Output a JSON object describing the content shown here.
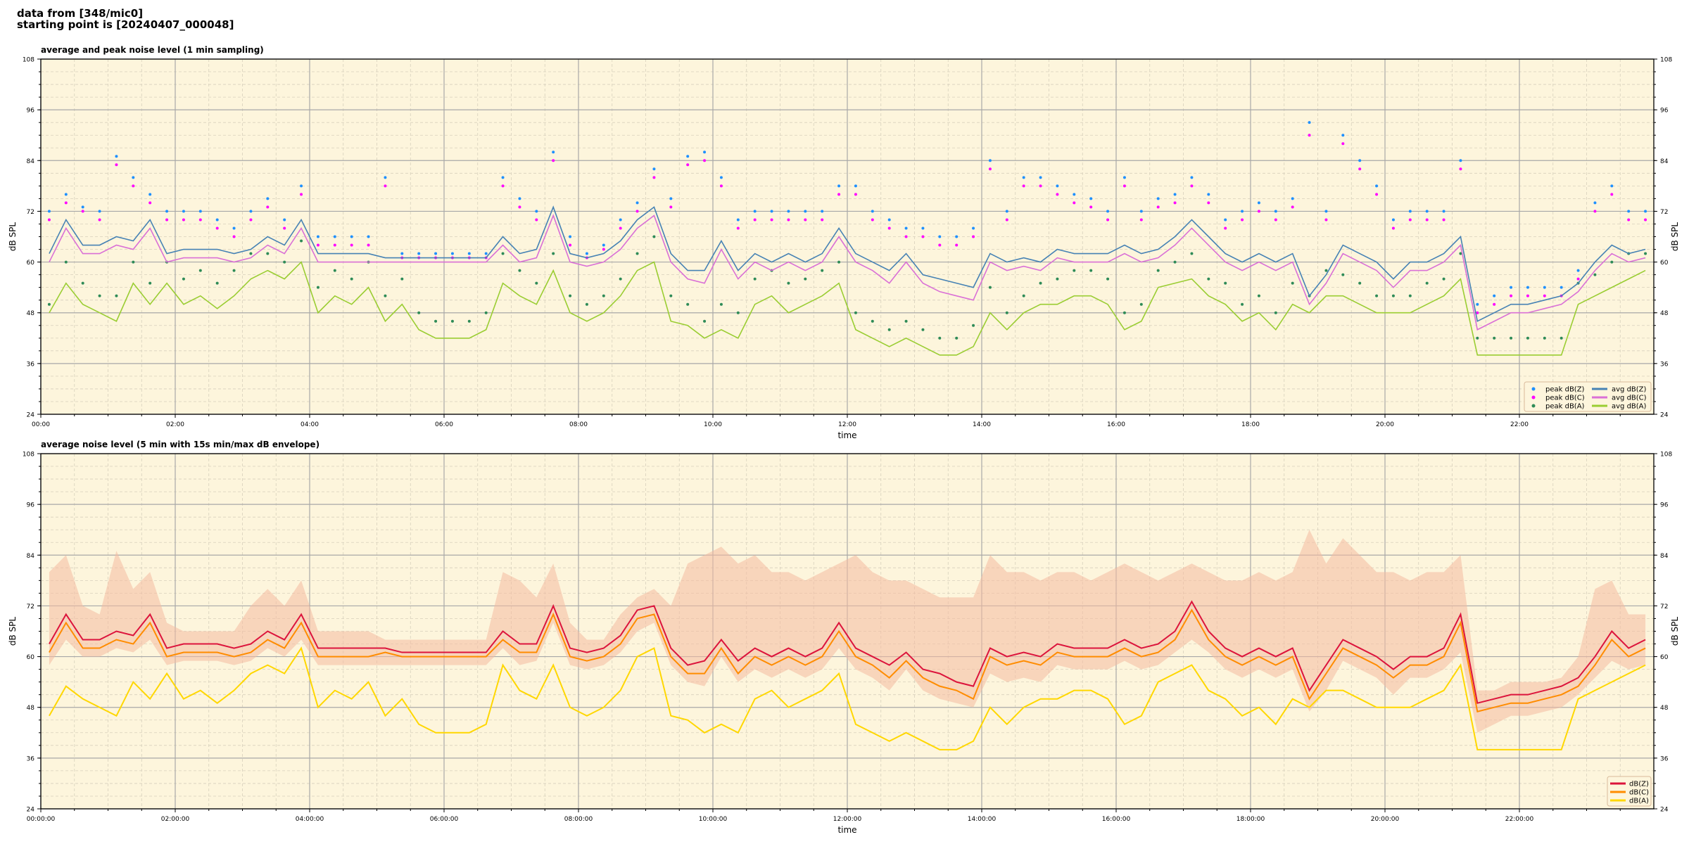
{
  "header": {
    "line1": "data from [348/mic0]",
    "line2": "starting point is [20240407_000048]"
  },
  "chart_data": [
    {
      "type": "line",
      "title": "average and peak noise level (1 min sampling)",
      "xlabel": "time",
      "ylabel": "dB SPL",
      "ylim": [
        24,
        108
      ],
      "yticks": [
        "24",
        "36",
        "48",
        "60",
        "72",
        "84",
        "96",
        "108"
      ],
      "xlim_hours": [
        0,
        24
      ],
      "xticks": [
        "00:00",
        "02:00",
        "04:00",
        "06:00",
        "08:00",
        "10:00",
        "12:00",
        "14:00",
        "16:00",
        "18:00",
        "20:00",
        "22:00"
      ],
      "grid": true,
      "legend_position": "bottom-right",
      "x_step_minutes": 15,
      "series": [
        {
          "name": "peak dB(Z)",
          "kind": "scatter",
          "color": "#1e90ff",
          "values": [
            72,
            76,
            73,
            72,
            85,
            80,
            76,
            72,
            72,
            72,
            70,
            68,
            72,
            75,
            70,
            78,
            66,
            66,
            66,
            66,
            80,
            62,
            62,
            62,
            62,
            62,
            62,
            80,
            75,
            72,
            86,
            66,
            62,
            64,
            70,
            74,
            82,
            75,
            85,
            86,
            80,
            70,
            72,
            72,
            72,
            72,
            72,
            78,
            78,
            72,
            70,
            68,
            68,
            66,
            66,
            68,
            84,
            72,
            80,
            80,
            78,
            76,
            75,
            72,
            80,
            72,
            75,
            76,
            80,
            76,
            70,
            72,
            74,
            72,
            75,
            93,
            72,
            90,
            84,
            78,
            70,
            72,
            72,
            72,
            84,
            50,
            52,
            54,
            54,
            54,
            54,
            58,
            74,
            78,
            72,
            72
          ]
        },
        {
          "name": "peak dB(C)",
          "kind": "scatter",
          "color": "#ff00ff",
          "values": [
            70,
            74,
            72,
            70,
            83,
            78,
            74,
            70,
            70,
            70,
            68,
            66,
            70,
            73,
            68,
            76,
            64,
            64,
            64,
            64,
            78,
            61,
            61,
            61,
            61,
            61,
            61,
            78,
            73,
            70,
            84,
            64,
            61,
            63,
            68,
            72,
            80,
            73,
            83,
            84,
            78,
            68,
            70,
            70,
            70,
            70,
            70,
            76,
            76,
            70,
            68,
            66,
            66,
            64,
            64,
            66,
            82,
            70,
            78,
            78,
            76,
            74,
            73,
            70,
            78,
            70,
            73,
            74,
            78,
            74,
            68,
            70,
            72,
            70,
            73,
            90,
            70,
            88,
            82,
            76,
            68,
            70,
            70,
            70,
            82,
            48,
            50,
            52,
            52,
            52,
            52,
            56,
            72,
            76,
            70,
            70
          ]
        },
        {
          "name": "peak dB(A)",
          "kind": "scatter",
          "color": "#2e8b57",
          "values": [
            50,
            60,
            55,
            52,
            52,
            60,
            55,
            60,
            56,
            58,
            55,
            58,
            62,
            62,
            60,
            65,
            54,
            58,
            56,
            60,
            52,
            56,
            48,
            46,
            46,
            46,
            48,
            62,
            58,
            55,
            62,
            52,
            50,
            52,
            56,
            62,
            66,
            52,
            50,
            46,
            50,
            48,
            56,
            58,
            55,
            56,
            58,
            60,
            48,
            46,
            44,
            46,
            44,
            42,
            42,
            45,
            54,
            48,
            52,
            55,
            56,
            58,
            58,
            56,
            48,
            50,
            58,
            60,
            62,
            56,
            55,
            50,
            52,
            48,
            55,
            52,
            58,
            57,
            55,
            52,
            52,
            52,
            55,
            56,
            62,
            42,
            42,
            42,
            42,
            42,
            42,
            55,
            57,
            60,
            62,
            62
          ]
        },
        {
          "name": "avg dB(Z)",
          "kind": "line",
          "color": "#4682b4",
          "values": [
            62,
            70,
            64,
            64,
            66,
            65,
            70,
            62,
            63,
            63,
            63,
            62,
            63,
            66,
            64,
            70,
            62,
            62,
            62,
            62,
            61,
            61,
            61,
            61,
            61,
            61,
            61,
            66,
            62,
            63,
            73,
            62,
            61,
            62,
            65,
            70,
            73,
            62,
            58,
            58,
            65,
            58,
            62,
            60,
            62,
            60,
            62,
            68,
            62,
            60,
            58,
            62,
            57,
            56,
            55,
            54,
            62,
            60,
            61,
            60,
            63,
            62,
            62,
            62,
            64,
            62,
            63,
            66,
            70,
            66,
            62,
            60,
            62,
            60,
            62,
            52,
            57,
            64,
            62,
            60,
            56,
            60,
            60,
            62,
            66,
            46,
            48,
            50,
            50,
            51,
            52,
            55,
            60,
            64,
            62,
            63
          ]
        },
        {
          "name": "avg dB(C)",
          "kind": "line",
          "color": "#da70d6",
          "values": [
            60,
            68,
            62,
            62,
            64,
            63,
            68,
            60,
            61,
            61,
            61,
            60,
            61,
            64,
            62,
            68,
            60,
            60,
            60,
            60,
            60,
            60,
            60,
            60,
            60,
            60,
            60,
            64,
            60,
            61,
            71,
            60,
            59,
            60,
            63,
            68,
            71,
            60,
            56,
            55,
            63,
            56,
            60,
            58,
            60,
            58,
            60,
            66,
            60,
            58,
            55,
            60,
            55,
            53,
            52,
            51,
            60,
            58,
            59,
            58,
            61,
            60,
            60,
            60,
            62,
            60,
            61,
            64,
            68,
            64,
            60,
            58,
            60,
            58,
            60,
            50,
            55,
            62,
            60,
            58,
            54,
            58,
            58,
            60,
            64,
            44,
            46,
            48,
            48,
            49,
            50,
            53,
            58,
            62,
            60,
            61
          ]
        },
        {
          "name": "avg dB(A)",
          "kind": "line",
          "color": "#9acd32",
          "values": [
            48,
            55,
            50,
            48,
            46,
            55,
            50,
            55,
            50,
            52,
            49,
            52,
            56,
            58,
            56,
            60,
            48,
            52,
            50,
            54,
            46,
            50,
            44,
            42,
            42,
            42,
            44,
            55,
            52,
            50,
            58,
            48,
            46,
            48,
            52,
            58,
            60,
            46,
            45,
            42,
            44,
            42,
            50,
            52,
            48,
            50,
            52,
            55,
            44,
            42,
            40,
            42,
            40,
            38,
            38,
            40,
            48,
            44,
            48,
            50,
            50,
            52,
            52,
            50,
            44,
            46,
            54,
            55,
            56,
            52,
            50,
            46,
            48,
            44,
            50,
            48,
            52,
            52,
            50,
            48,
            48,
            48,
            50,
            52,
            56,
            38,
            38,
            38,
            38,
            38,
            38,
            50,
            52,
            54,
            56,
            58
          ]
        }
      ]
    },
    {
      "type": "line",
      "title": "average noise level (5 min with 15s min/max dB envelope)",
      "xlabel": "time",
      "ylabel": "dB SPL",
      "ylim": [
        24,
        108
      ],
      "yticks": [
        "24",
        "36",
        "48",
        "60",
        "72",
        "84",
        "96",
        "108"
      ],
      "xlim_hours": [
        0,
        24
      ],
      "xticks": [
        "00:00:00",
        "02:00:00",
        "04:00:00",
        "06:00:00",
        "08:00:00",
        "10:00:00",
        "12:00:00",
        "14:00:00",
        "16:00:00",
        "18:00:00",
        "20:00:00",
        "22:00:00"
      ],
      "grid": true,
      "legend_position": "bottom-right",
      "x_step_minutes": 15,
      "envelope": {
        "color": "#f4b9a0",
        "max": [
          80,
          84,
          72,
          70,
          85,
          76,
          80,
          68,
          66,
          66,
          66,
          66,
          72,
          76,
          72,
          78,
          66,
          66,
          66,
          66,
          64,
          64,
          64,
          64,
          64,
          64,
          64,
          80,
          78,
          74,
          82,
          68,
          64,
          64,
          70,
          74,
          76,
          72,
          82,
          84,
          86,
          82,
          84,
          80,
          80,
          78,
          80,
          82,
          84,
          80,
          78,
          78,
          76,
          74,
          74,
          74,
          84,
          80,
          80,
          78,
          80,
          80,
          78,
          80,
          82,
          80,
          78,
          80,
          82,
          80,
          78,
          78,
          80,
          78,
          80,
          90,
          82,
          88,
          84,
          80,
          80,
          78,
          80,
          80,
          84,
          52,
          52,
          54,
          54,
          54,
          55,
          60,
          76,
          78,
          70,
          70
        ],
        "min": [
          58,
          64,
          60,
          60,
          62,
          61,
          64,
          58,
          59,
          59,
          59,
          58,
          59,
          62,
          60,
          64,
          58,
          58,
          58,
          58,
          58,
          58,
          58,
          58,
          58,
          58,
          58,
          62,
          58,
          59,
          68,
          58,
          57,
          58,
          61,
          66,
          68,
          58,
          54,
          53,
          60,
          54,
          57,
          55,
          57,
          55,
          57,
          62,
          57,
          55,
          52,
          57,
          52,
          50,
          49,
          48,
          56,
          54,
          55,
          54,
          58,
          57,
          57,
          57,
          59,
          57,
          58,
          61,
          64,
          61,
          57,
          55,
          57,
          55,
          57,
          47,
          52,
          59,
          57,
          55,
          51,
          55,
          55,
          57,
          61,
          42,
          44,
          46,
          46,
          47,
          48,
          51,
          55,
          59,
          57,
          58
        ]
      },
      "series": [
        {
          "name": "dB(Z)",
          "kind": "line",
          "color": "#dc143c",
          "values": [
            63,
            70,
            64,
            64,
            66,
            65,
            70,
            62,
            63,
            63,
            63,
            62,
            63,
            66,
            64,
            70,
            62,
            62,
            62,
            62,
            62,
            61,
            61,
            61,
            61,
            61,
            61,
            66,
            63,
            63,
            72,
            62,
            61,
            62,
            65,
            71,
            72,
            62,
            58,
            59,
            64,
            59,
            62,
            60,
            62,
            60,
            62,
            68,
            62,
            60,
            58,
            61,
            57,
            56,
            54,
            53,
            62,
            60,
            61,
            60,
            63,
            62,
            62,
            62,
            64,
            62,
            63,
            66,
            73,
            66,
            62,
            60,
            62,
            60,
            62,
            52,
            58,
            64,
            62,
            60,
            57,
            60,
            60,
            62,
            70,
            49,
            50,
            51,
            51,
            52,
            53,
            55,
            60,
            66,
            62,
            64
          ]
        },
        {
          "name": "dB(C)",
          "kind": "line",
          "color": "#ff8c00",
          "values": [
            61,
            68,
            62,
            62,
            64,
            63,
            68,
            60,
            61,
            61,
            61,
            60,
            61,
            64,
            62,
            68,
            60,
            60,
            60,
            60,
            61,
            60,
            60,
            60,
            60,
            60,
            60,
            64,
            61,
            61,
            70,
            60,
            59,
            60,
            63,
            69,
            70,
            60,
            56,
            56,
            62,
            56,
            60,
            58,
            60,
            58,
            60,
            66,
            60,
            58,
            55,
            59,
            55,
            53,
            52,
            50,
            60,
            58,
            59,
            58,
            61,
            60,
            60,
            60,
            62,
            60,
            61,
            64,
            71,
            64,
            60,
            58,
            60,
            58,
            60,
            50,
            56,
            62,
            60,
            58,
            55,
            58,
            58,
            60,
            68,
            47,
            48,
            49,
            49,
            50,
            51,
            53,
            58,
            64,
            60,
            62
          ]
        },
        {
          "name": "dB(A)",
          "kind": "line",
          "color": "#ffd700",
          "values": [
            46,
            53,
            50,
            48,
            46,
            54,
            50,
            56,
            50,
            52,
            49,
            52,
            56,
            58,
            56,
            62,
            48,
            52,
            50,
            54,
            46,
            50,
            44,
            42,
            42,
            42,
            44,
            58,
            52,
            50,
            58,
            48,
            46,
            48,
            52,
            60,
            62,
            46,
            45,
            42,
            44,
            42,
            50,
            52,
            48,
            50,
            52,
            56,
            44,
            42,
            40,
            42,
            40,
            38,
            38,
            40,
            48,
            44,
            48,
            50,
            50,
            52,
            52,
            50,
            44,
            46,
            54,
            56,
            58,
            52,
            50,
            46,
            48,
            44,
            50,
            48,
            52,
            52,
            50,
            48,
            48,
            48,
            50,
            52,
            58,
            38,
            38,
            38,
            38,
            38,
            38,
            50,
            52,
            54,
            56,
            58
          ]
        }
      ]
    }
  ]
}
